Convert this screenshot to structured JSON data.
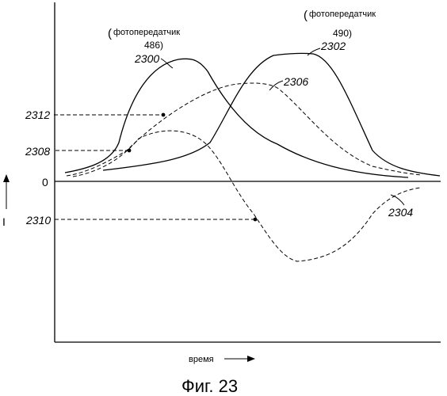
{
  "figure": {
    "caption": "Фиг. 23",
    "x_axis_label": "время",
    "y_axis_label": "I",
    "zero_label": "0"
  },
  "transmitters": [
    {
      "label": "фотопередатчик",
      "number": "486)"
    },
    {
      "label": "фотопередатчик",
      "number": "490)"
    }
  ],
  "curves": [
    {
      "ref": "2300",
      "style": "solid"
    },
    {
      "ref": "2302",
      "style": "solid"
    },
    {
      "ref": "2304",
      "style": "dashed"
    },
    {
      "ref": "2306",
      "style": "dashed"
    }
  ],
  "levels": [
    {
      "ref": "2312"
    },
    {
      "ref": "2308"
    },
    {
      "ref": "2310"
    }
  ]
}
